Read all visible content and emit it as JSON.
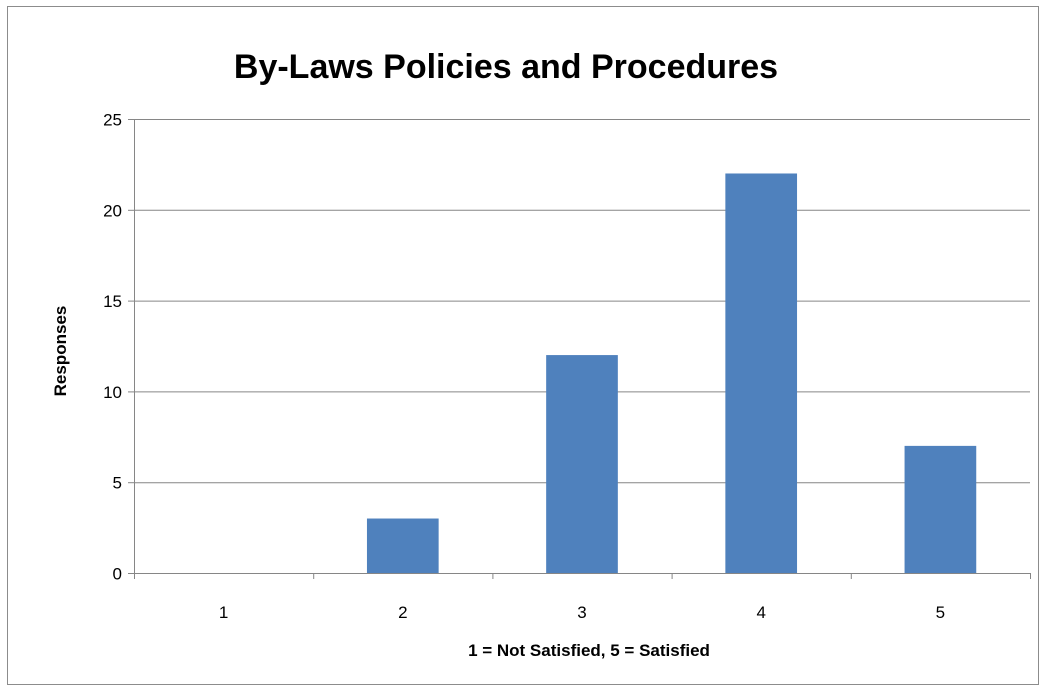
{
  "chart_data": {
    "type": "bar",
    "title": "By-Laws Policies and Procedures",
    "xlabel": "1 = Not Satisfied, 5 = Satisfied",
    "ylabel": "Responses",
    "categories": [
      "1",
      "2",
      "3",
      "4",
      "5"
    ],
    "values": [
      0,
      3,
      12,
      22,
      7
    ],
    "ylim": [
      0,
      25
    ],
    "yticks": [
      "0",
      "5",
      "10",
      "15",
      "20",
      "25"
    ],
    "grid": true,
    "legend": "none",
    "bar_color": "#4f81bd",
    "grid_color": "#868686"
  }
}
